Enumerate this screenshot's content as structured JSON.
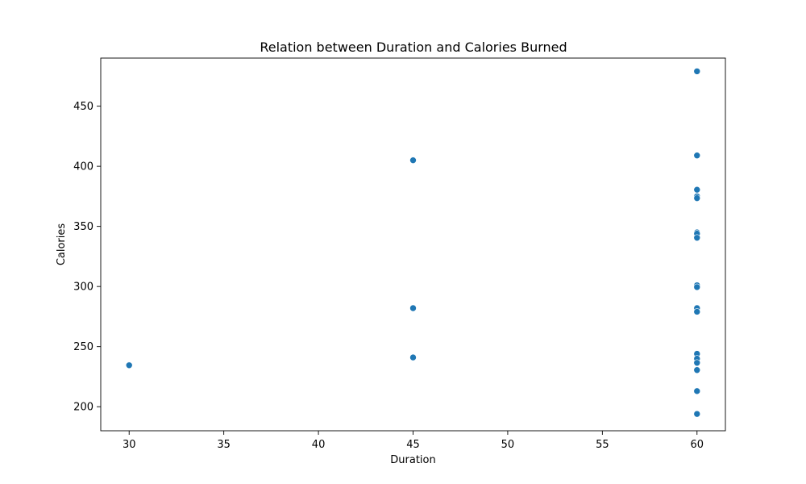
{
  "chart_data": {
    "type": "scatter",
    "title": "Relation between Duration and Calories Burned",
    "xlabel": "Duration",
    "ylabel": "Calories",
    "xlim": [
      28.5,
      61.5
    ],
    "ylim": [
      180,
      490
    ],
    "xticks": [
      30,
      35,
      40,
      45,
      50,
      55,
      60
    ],
    "yticks": [
      200,
      250,
      300,
      350,
      400,
      450
    ],
    "grid": false,
    "point_color": "#1f77b4",
    "points": [
      {
        "x": 30,
        "y": 234.5
      },
      {
        "x": 45,
        "y": 405
      },
      {
        "x": 45,
        "y": 282
      },
      {
        "x": 45,
        "y": 241
      },
      {
        "x": 60,
        "y": 479
      },
      {
        "x": 60,
        "y": 409
      },
      {
        "x": 60,
        "y": 380.5
      },
      {
        "x": 60,
        "y": 375
      },
      {
        "x": 60,
        "y": 373.5
      },
      {
        "x": 60,
        "y": 345
      },
      {
        "x": 60,
        "y": 344
      },
      {
        "x": 60,
        "y": 340.5
      },
      {
        "x": 60,
        "y": 301
      },
      {
        "x": 60,
        "y": 299.5
      },
      {
        "x": 60,
        "y": 282
      },
      {
        "x": 60,
        "y": 279
      },
      {
        "x": 60,
        "y": 244
      },
      {
        "x": 60,
        "y": 240
      },
      {
        "x": 60,
        "y": 236.5
      },
      {
        "x": 60,
        "y": 230.5
      },
      {
        "x": 60,
        "y": 213
      },
      {
        "x": 60,
        "y": 194
      }
    ]
  }
}
